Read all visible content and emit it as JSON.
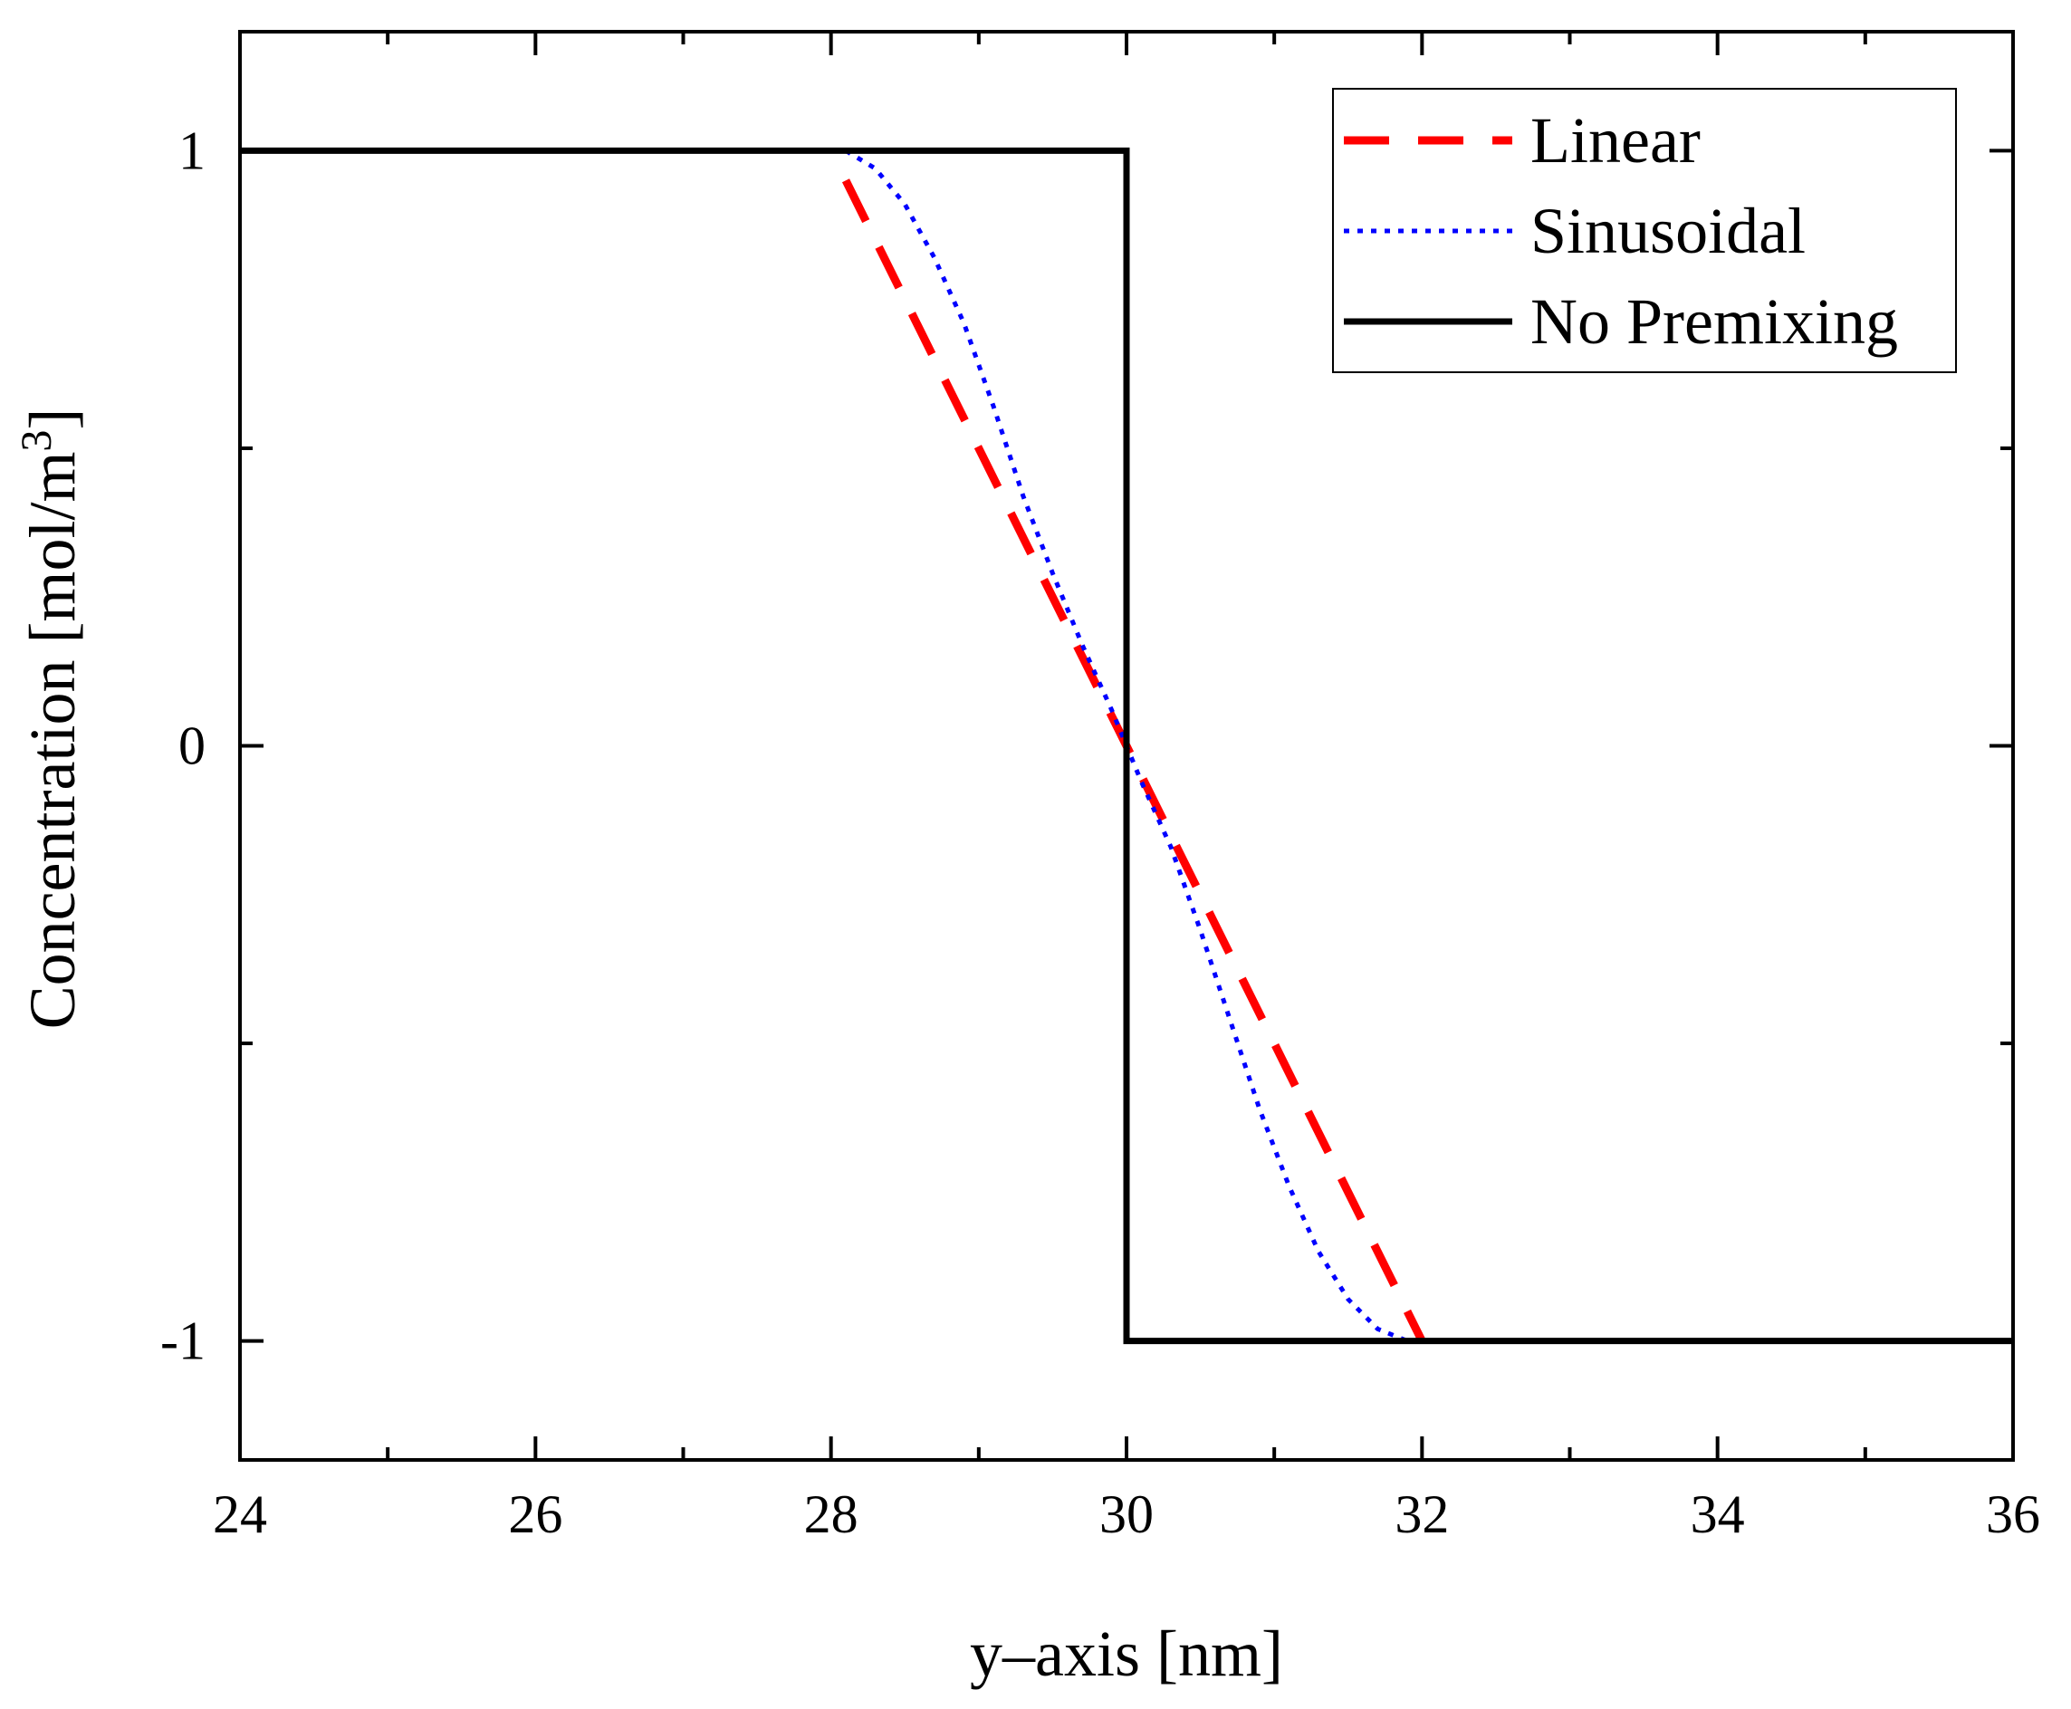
{
  "chart_data": {
    "type": "line",
    "xlabel": "y–axis [nm]",
    "ylabel": "Concentration [mol/m",
    "ylabel_superscript": "3",
    "ylabel_suffix": "]",
    "xlim": [
      24,
      36
    ],
    "ylim": [
      -1.2,
      1.2
    ],
    "x_ticks": [
      24,
      26,
      28,
      30,
      32,
      34,
      36
    ],
    "x_tick_labels": [
      "24",
      "26",
      "28",
      "30",
      "32",
      "34",
      "36"
    ],
    "x_minor_ticks": [
      25,
      27,
      29,
      31,
      33,
      35
    ],
    "y_ticks": [
      1,
      0,
      -1
    ],
    "y_tick_labels": [
      "1",
      "0",
      "-1"
    ],
    "y_minor_ticks": [
      0.5,
      -0.5
    ],
    "grid": false,
    "legend_position": "top-right",
    "series": [
      {
        "name": "Linear",
        "style": "dashed",
        "color": "#ff0000",
        "x": [
          28.1,
          32.0
        ],
        "y": [
          0.95,
          -1.0
        ]
      },
      {
        "name": "Sinusoidal",
        "style": "dotted",
        "color": "#0000ff",
        "x": [
          28.1,
          28.3,
          28.5,
          28.7,
          28.9,
          29.1,
          29.3,
          29.5,
          29.7,
          29.9,
          30.0,
          30.1,
          30.3,
          30.5,
          30.7,
          30.9,
          31.1,
          31.3,
          31.5,
          31.7,
          31.9
        ],
        "y": [
          1.0,
          0.97,
          0.91,
          0.82,
          0.71,
          0.57,
          0.42,
          0.29,
          0.17,
          0.06,
          0.0,
          -0.06,
          -0.17,
          -0.31,
          -0.46,
          -0.61,
          -0.74,
          -0.85,
          -0.93,
          -0.98,
          -1.0
        ]
      },
      {
        "name": "No Premixing",
        "style": "solid",
        "color": "#000000",
        "x": [
          24,
          30,
          30,
          36
        ],
        "y": [
          1,
          1,
          -1,
          -1
        ]
      }
    ]
  }
}
